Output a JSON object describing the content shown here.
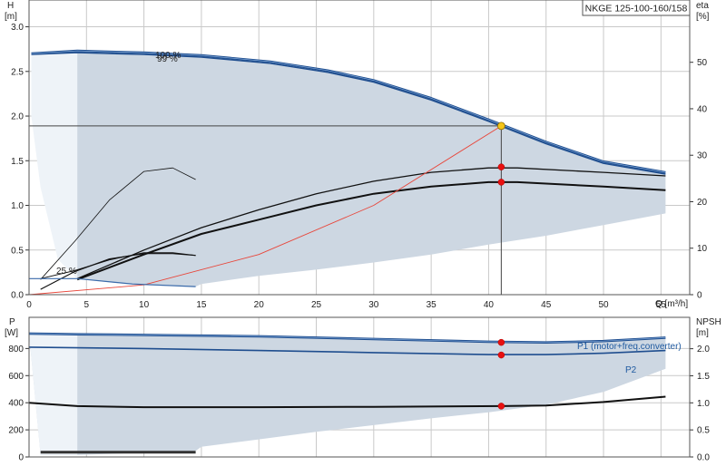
{
  "chart_data": [
    {
      "type": "line",
      "title": "NKGE 125-100-160/158",
      "xlabel": "Q [m³/h]",
      "ylabel_line1": "H",
      "ylabel_line2": "[m]",
      "y2label_line1": "eta",
      "y2label_line2": "[%]",
      "xlim": [
        0,
        57.5
      ],
      "ylim": [
        0,
        3.3
      ],
      "y2lim": [
        0,
        63.4
      ],
      "xticks": [
        "0",
        "5",
        "10",
        "15",
        "20",
        "25",
        "30",
        "35",
        "40",
        "45",
        "50",
        "55"
      ],
      "yticks": [
        "0.0",
        "0.5",
        "1.0",
        "1.5",
        "2.0",
        "2.5",
        "3.0"
      ],
      "y2ticks": [
        "0",
        "10",
        "20",
        "30",
        "40",
        "50"
      ],
      "grid": true,
      "curve_labels": [
        "100 %",
        "99 %",
        "25 %"
      ],
      "duty_point": {
        "x": 41.1,
        "y": 1.89
      },
      "series": [
        {
          "x": [
            0.2,
            4.2,
            10,
            15,
            21,
            26,
            30,
            35,
            40,
            45,
            50,
            55.4
          ],
          "y": [
            2.7,
            2.73,
            2.71,
            2.68,
            2.61,
            2.51,
            2.4,
            2.2,
            1.96,
            1.71,
            1.49,
            1.37
          ]
        },
        {
          "x": [
            0.2,
            4.2,
            10,
            15,
            21,
            26,
            30,
            35,
            40,
            45,
            50,
            55.4
          ],
          "y": [
            2.69,
            2.71,
            2.69,
            2.66,
            2.59,
            2.49,
            2.38,
            2.18,
            1.94,
            1.69,
            1.47,
            1.35
          ]
        },
        {
          "x": [
            1,
            4,
            7,
            10,
            12.5,
            14.5
          ],
          "y": [
            0.17,
            0.6,
            1.06,
            1.38,
            1.42,
            1.29
          ]
        },
        {
          "x": [
            4.2,
            10,
            15,
            20,
            25,
            30,
            35,
            40,
            42.5,
            50,
            55.4
          ],
          "y": [
            0.18,
            0.5,
            0.75,
            0.95,
            1.13,
            1.27,
            1.37,
            1.42,
            1.42,
            1.37,
            1.33
          ]
        },
        {
          "x": [
            4.2,
            10,
            15,
            20,
            25,
            30,
            35,
            40,
            42.5,
            50,
            55.4
          ],
          "y": [
            0.17,
            0.45,
            0.68,
            0.84,
            1.0,
            1.13,
            1.21,
            1.26,
            1.26,
            1.21,
            1.17
          ]
        },
        {
          "x": [
            1,
            4,
            7,
            10,
            12.5,
            14.5
          ],
          "y": [
            0.06,
            0.26,
            0.4,
            0.46,
            0.46,
            0.44
          ]
        },
        {
          "x": [
            1,
            4,
            7,
            10,
            12.5,
            14.5
          ],
          "y": [
            0.18,
            0.27,
            0.39,
            0.47,
            0.47,
            0.44
          ]
        },
        {
          "x": [
            0,
            10,
            20,
            30,
            41.1
          ],
          "y": [
            0.0,
            0.11,
            0.45,
            1.0,
            1.89
          ]
        },
        {
          "x": [
            0,
            4.2
          ],
          "y": [
            0.18,
            0.18
          ]
        },
        {
          "x": [
            4.2,
            9,
            14.5
          ],
          "y": [
            0.18,
            0.12,
            0.09
          ]
        }
      ],
      "markers": [
        {
          "x": 41.1,
          "y": 1.43
        },
        {
          "x": 41.1,
          "y": 1.26
        }
      ]
    },
    {
      "type": "line",
      "title": "",
      "xlabel": "",
      "ylabel_line1": "P",
      "ylabel_line2": "[W]",
      "y2label_line1": "NPSH",
      "y2label_line2": "[m]",
      "xlim": [
        0,
        57.5
      ],
      "ylim": [
        0,
        1030
      ],
      "y2lim": [
        0,
        2.58
      ],
      "xticks": [],
      "yticks": [
        "0",
        "200",
        "400",
        "600",
        "800"
      ],
      "y2ticks": [
        "0.0",
        "0.5",
        "1.0",
        "1.5",
        "2.0"
      ],
      "grid": true,
      "series": [
        {
          "name": "P1 (motor+freq.converter)",
          "x": [
            0,
            4.2,
            10,
            20,
            30,
            40,
            45,
            50,
            55.4
          ],
          "y": [
            910,
            905,
            900,
            890,
            870,
            850,
            845,
            855,
            880
          ]
        },
        {
          "name": "P2",
          "x": [
            0,
            4.2,
            10,
            20,
            30,
            40,
            45,
            50,
            55.4
          ],
          "y": [
            810,
            805,
            800,
            785,
            770,
            755,
            755,
            765,
            785
          ]
        },
        {
          "x": [
            0,
            4.2,
            10,
            20,
            30,
            41.1,
            45,
            50,
            55.4
          ],
          "y": [
            400,
            375,
            367,
            367,
            370,
            375,
            380,
            405,
            445
          ]
        },
        {
          "x": [
            1,
            4.2,
            14.5
          ],
          "y": [
            35,
            35,
            35
          ]
        }
      ],
      "markers": [
        {
          "x": 41.1,
          "y": 845
        },
        {
          "x": 41.1,
          "y": 752
        },
        {
          "x": 41.1,
          "y": 375
        }
      ]
    }
  ]
}
